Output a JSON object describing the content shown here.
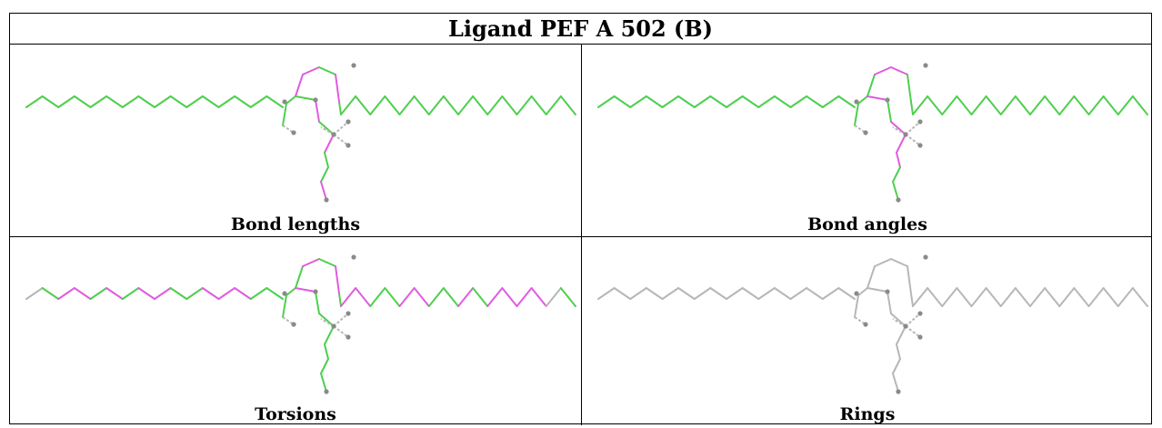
{
  "header": {
    "title": "Ligand PEF A 502 (B)"
  },
  "colors": {
    "green": "#4ecf4e",
    "magenta": "#e05ce0",
    "gray": "#b7b7b7",
    "atom": "#8a8a8a"
  },
  "panels": [
    {
      "id": "bond-lengths",
      "caption": "Bond lengths",
      "left": [
        1,
        1,
        1,
        1,
        1,
        1,
        1,
        1,
        1,
        1,
        1,
        1,
        1,
        1,
        1,
        1
      ],
      "right": [
        1,
        1,
        1,
        1,
        1,
        1,
        1,
        1,
        1,
        1,
        1,
        1,
        1,
        1,
        1,
        1
      ],
      "top": [
        1,
        1,
        2,
        2,
        1,
        2,
        1,
        2,
        1,
        1,
        1,
        1,
        2,
        1
      ],
      "bottom": [
        2,
        1,
        1,
        2,
        1,
        1,
        1
      ]
    },
    {
      "id": "bond-angles",
      "caption": "Bond angles",
      "left": [
        1,
        1,
        1,
        1,
        1,
        1,
        1,
        1,
        1,
        1,
        1,
        1,
        1,
        1,
        1,
        1
      ],
      "right": [
        1,
        1,
        1,
        1,
        1,
        1,
        1,
        1,
        1,
        1,
        1,
        1,
        1,
        1,
        1,
        1
      ],
      "top": [
        1,
        1,
        1,
        2,
        2,
        1,
        2,
        1,
        2,
        2,
        1,
        1,
        2,
        1
      ],
      "bottom": [
        2,
        2,
        1,
        1,
        1,
        1,
        1
      ]
    },
    {
      "id": "torsions",
      "caption": "Torsions",
      "left": [
        3,
        1,
        2,
        2,
        1,
        2,
        1,
        2,
        2,
        1,
        1,
        2,
        2,
        2,
        1,
        1
      ],
      "right": [
        1,
        2,
        2,
        1,
        1,
        2,
        2,
        1,
        1,
        2,
        1,
        2,
        2,
        2,
        2,
        3
      ],
      "top": [
        1,
        1,
        1,
        2,
        1,
        2,
        2,
        1,
        1,
        2,
        1,
        2,
        2,
        1
      ],
      "bottom": [
        1,
        1,
        1,
        1,
        2,
        2,
        3
      ]
    },
    {
      "id": "rings",
      "caption": "Rings",
      "left": [
        3,
        3,
        3,
        3,
        3,
        3,
        3,
        3,
        3,
        3,
        3,
        3,
        3,
        3,
        3,
        3
      ],
      "right": [
        3,
        3,
        3,
        3,
        3,
        3,
        3,
        3,
        3,
        3,
        3,
        3,
        3,
        3,
        3,
        3
      ],
      "top": [
        3,
        3,
        3,
        3,
        3,
        3,
        3,
        3,
        3,
        3,
        3,
        3,
        3,
        3
      ],
      "bottom": [
        3,
        3,
        3,
        3,
        3,
        3,
        3
      ]
    }
  ]
}
